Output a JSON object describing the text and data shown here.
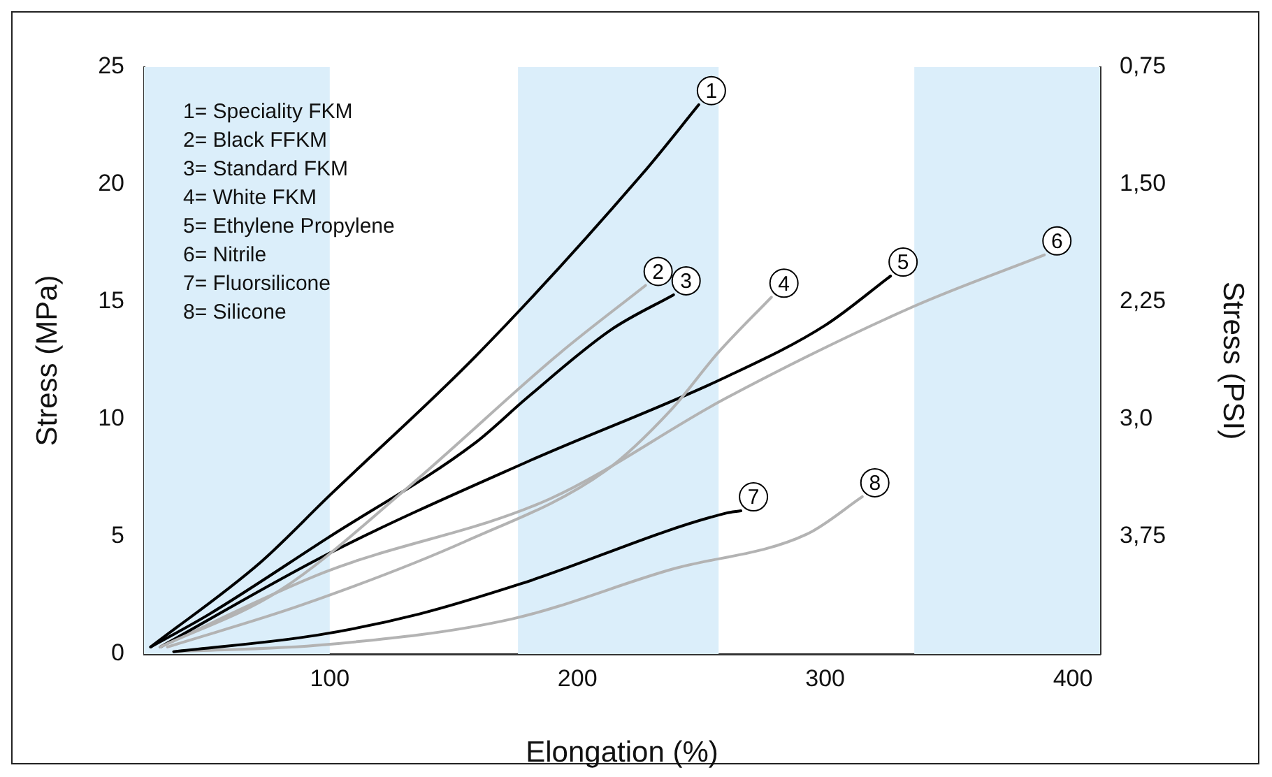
{
  "chart_data": {
    "type": "line",
    "xlabel": "Elongation (%)",
    "ylabel": "Stress (MPa)",
    "y2label": "Stress (PSI)",
    "xlim": [
      25,
      411
    ],
    "xticks": [
      100,
      200,
      300,
      400
    ],
    "ylim": [
      0,
      25
    ],
    "yticks": [
      0,
      5,
      10,
      15,
      20,
      25
    ],
    "y2lim": [
      4.5,
      0.75
    ],
    "y2ticks": [
      {
        "value": 0.75,
        "label": "0,75"
      },
      {
        "value": 1.5,
        "label": "1,50"
      },
      {
        "value": 2.25,
        "label": "2,25"
      },
      {
        "value": 3,
        "label": "3,0"
      },
      {
        "value": 3.75,
        "label": "3,75"
      }
    ],
    "grid": false,
    "marker": "none",
    "line_style": "solid",
    "bands": [
      {
        "axis": "x",
        "from": 25,
        "to": 100,
        "color": "#dbeefa"
      },
      {
        "axis": "x",
        "from": 176,
        "to": 257,
        "color": "#dbeefa"
      },
      {
        "axis": "x",
        "from": 336,
        "to": 411,
        "color": "#dbeefa"
      }
    ],
    "annotations": [
      "1= Speciality FKM",
      "2= Black FFKM",
      "3= Standard FKM",
      "4= White FKM",
      "5= Ethylene Propylene",
      "6= Nitrile",
      "7= Fluorsilicone",
      "8= Silicone"
    ],
    "series": [
      {
        "name": "1",
        "color": "#000000",
        "x": [
          27.7,
          72,
          99.4,
          160,
          226.6,
          249
        ],
        "values": [
          0.3,
          3.9,
          6.7,
          12.8,
          20.5,
          23.4
        ]
      },
      {
        "name": "2",
        "color": "#b3b3b3",
        "x": [
          31.6,
          79.7,
          130.5,
          192.7,
          227.5
        ],
        "values": [
          0.3,
          2.7,
          7.0,
          12.8,
          15.7
        ]
      },
      {
        "name": "3",
        "color": "#000000",
        "x": [
          27.7,
          51.4,
          98.5,
          158.8,
          179.5,
          213.4,
          238.8
        ],
        "values": [
          0.3,
          1.7,
          4.9,
          9.0,
          10.9,
          13.8,
          15.3
        ]
      },
      {
        "name": "4",
        "color": "#b3b3b3",
        "x": [
          34.5,
          89,
          154.8,
          211.3,
          237.8,
          256.5,
          278.3
        ],
        "values": [
          0.3,
          2.1,
          4.8,
          7.8,
          10.4,
          12.8,
          15.2
        ]
      },
      {
        "name": "5",
        "color": "#000000",
        "x": [
          31.6,
          100,
          180,
          260,
          300,
          326.4
        ],
        "values": [
          0.3,
          4.3,
          8.2,
          11.8,
          14.0,
          16.1
        ]
      },
      {
        "name": "6",
        "color": "#b3b3b3",
        "x": [
          31.6,
          98.3,
          188.7,
          260,
          335.6,
          388.5
        ],
        "values": [
          0.3,
          3.5,
          6.6,
          10.9,
          14.8,
          17.0
        ]
      },
      {
        "name": "7",
        "color": "#000000",
        "x": [
          37,
          94.7,
          136,
          177.4,
          260,
          266
        ],
        "values": [
          0.1,
          0.8,
          1.7,
          3.0,
          6.0,
          6.1
        ]
      },
      {
        "name": "8",
        "color": "#b3b3b3",
        "x": [
          37,
          98.5,
          173.8,
          237.8,
          292.5,
          315
        ],
        "values": [
          0.1,
          0.4,
          1.5,
          3.6,
          5.1,
          6.7
        ]
      }
    ]
  }
}
